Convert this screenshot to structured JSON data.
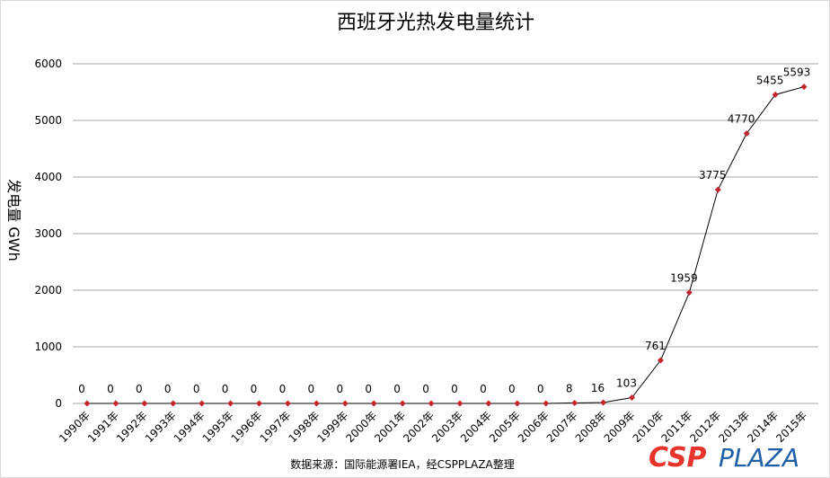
{
  "chart_data": {
    "type": "line",
    "title": "西班牙光热发电量统计",
    "y_label": "发电量 GWh",
    "source": "数据来源：国际能源署IEA，经CSPPLAZA整理",
    "logo": [
      "CSP",
      "PLAZA"
    ],
    "categories": [
      "1990年",
      "1991年",
      "1992年",
      "1993年",
      "1994年",
      "1995年",
      "1996年",
      "1997年",
      "1998年",
      "1999年",
      "2000年",
      "2001年",
      "2002年",
      "2003年",
      "2004年",
      "2005年",
      "2006年",
      "2007年",
      "2008年",
      "2009年",
      "2010年",
      "2011年",
      "2012年",
      "2013年",
      "2014年",
      "2015年"
    ],
    "series": [
      {
        "name": "发电量",
        "color": "#000000",
        "marker_color": "#c0282d",
        "values": [
          0,
          0,
          0,
          0,
          0,
          0,
          0,
          0,
          0,
          0,
          0,
          0,
          0,
          0,
          0,
          0,
          0,
          8,
          16,
          103,
          761,
          1959,
          3775,
          4770,
          5455,
          5593
        ]
      }
    ],
    "ylim": [
      0,
      6000
    ],
    "yticks": [
      0,
      1000,
      2000,
      3000,
      4000,
      5000,
      6000
    ],
    "grid": true,
    "data_labels": true
  }
}
